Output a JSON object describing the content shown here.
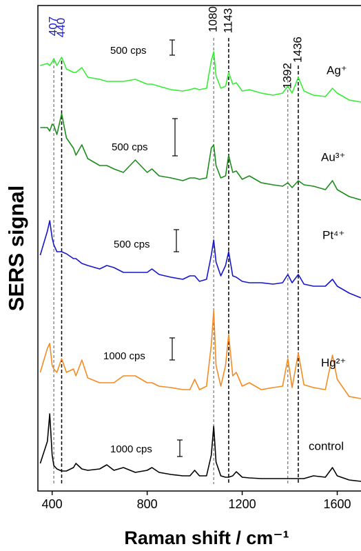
{
  "chart_data": {
    "type": "line",
    "xlabel": "Raman shift / cm⁻¹",
    "ylabel": "SERS signal",
    "xlim": [
      340,
      1700
    ],
    "xticks": [
      400,
      800,
      1200,
      1600
    ],
    "ylim": [
      0,
      704
    ],
    "x": [
      350,
      380,
      390,
      400,
      407,
      420,
      440,
      460,
      490,
      500,
      525,
      550,
      600,
      630,
      660,
      700,
      750,
      800,
      820,
      850,
      900,
      950,
      980,
      1000,
      1020,
      1050,
      1070,
      1080,
      1090,
      1110,
      1130,
      1143,
      1160,
      1175,
      1200,
      1230,
      1280,
      1330,
      1370,
      1392,
      1410,
      1436,
      1460,
      1500,
      1550,
      1580,
      1600,
      1650,
      1700
    ],
    "series": [
      {
        "name": "Ag⁺",
        "color": "#33ee33",
        "scale_label": "500 cps",
        "values": [
          617,
          620,
          617,
          622,
          627,
          617,
          629,
          612,
          607,
          607,
          614,
          600,
          597,
          594,
          594,
          594,
          597,
          590,
          590,
          587,
          582,
          580,
          582,
          584,
          582,
          584,
          624,
          637,
          602,
          584,
          587,
          607,
          590,
          592,
          580,
          582,
          577,
          574,
          577,
          587,
          577,
          600,
          580,
          574,
          572,
          584,
          577,
          567,
          564
        ]
      },
      {
        "name": "Au³⁺",
        "color": "#1a8c1a",
        "scale_label": "500 cps",
        "values": [
          527,
          527,
          522,
          532,
          530,
          517,
          547,
          512,
          497,
          487,
          502,
          482,
          472,
          472,
          467,
          462,
          480,
          462,
          467,
          457,
          454,
          450,
          454,
          454,
          452,
          454,
          497,
          502,
          472,
          454,
          457,
          487,
          462,
          464,
          452,
          457,
          447,
          444,
          442,
          447,
          440,
          450,
          444,
          442,
          437,
          450,
          437,
          427,
          422
        ]
      },
      {
        "name": "Pt⁴⁺",
        "color": "#1515cc",
        "scale_label": "500 cps",
        "values": [
          342,
          377,
          392,
          367,
          357,
          347,
          347,
          344,
          337,
          337,
          330,
          327,
          322,
          327,
          324,
          317,
          317,
          317,
          322,
          314,
          310,
          307,
          312,
          312,
          304,
          307,
          342,
          364,
          332,
          312,
          327,
          347,
          312,
          310,
          304,
          302,
          302,
          300,
          302,
          314,
          302,
          314,
          300,
          297,
          297,
          307,
          297,
          287,
          280
        ]
      },
      {
        "name": "Hg²⁺",
        "color": "#f58a1f",
        "scale_label": "1000 cps",
        "values": [
          172,
          207,
          214,
          182,
          177,
          172,
          192,
          172,
          177,
          167,
          190,
          164,
          157,
          157,
          157,
          167,
          167,
          157,
          157,
          152,
          150,
          147,
          147,
          162,
          147,
          152,
          212,
          262,
          182,
          152,
          182,
          227,
          167,
          172,
          152,
          157,
          147,
          150,
          152,
          192,
          150,
          200,
          154,
          150,
          147,
          197,
          162,
          137,
          134
        ]
      },
      {
        "name": "control",
        "color": "#000000",
        "scale_label": "1000 cps",
        "values": [
          40,
          72,
          112,
          52,
          37,
          32,
          29,
          29,
          34,
          40,
          32,
          30,
          32,
          38,
          30,
          34,
          27,
          30,
          34,
          27,
          24,
          22,
          22,
          30,
          22,
          22,
          52,
          94,
          42,
          22,
          20,
          20,
          22,
          28,
          20,
          19,
          18,
          18,
          18,
          18,
          18,
          18,
          18,
          22,
          20,
          34,
          22,
          16,
          14
        ]
      }
    ],
    "peak_lines": [
      407,
      440,
      1080,
      1143,
      1392,
      1436
    ],
    "peak_colors": [
      "#1a1acc",
      "#1a1acc",
      "#000000",
      "#000000",
      "#000000",
      "#000000"
    ]
  }
}
